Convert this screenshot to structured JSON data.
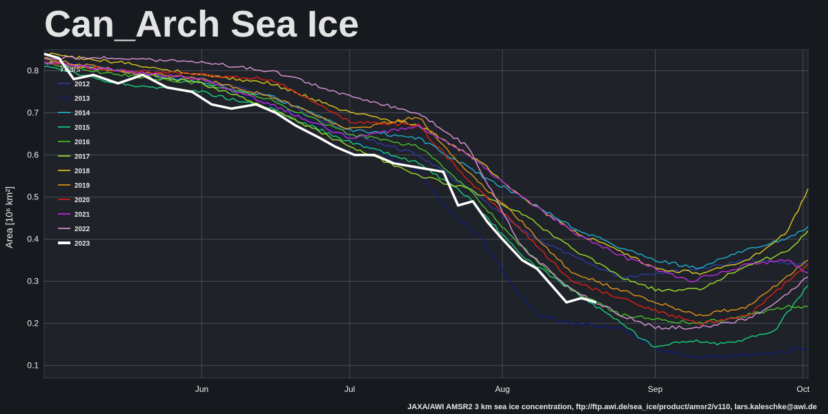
{
  "chart_data": {
    "type": "line",
    "title": "Can_Arch Sea Ice",
    "ylabel": "Area [10⁶ km²]",
    "xlabel": "",
    "xlim": [
      "2023-04-30",
      "2023-10-02"
    ],
    "ylim": [
      0.07,
      0.85
    ],
    "x_ticks": [
      {
        "label": "Jun",
        "date": "2023-06-01"
      },
      {
        "label": "Jul",
        "date": "2023-07-01"
      },
      {
        "label": "Aug",
        "date": "2023-08-01"
      },
      {
        "label": "Sep",
        "date": "2023-09-01"
      },
      {
        "label": "Oct",
        "date": "2023-10-01"
      }
    ],
    "y_ticks": [
      "0.1",
      "0.2",
      "0.3",
      "0.4",
      "0.5",
      "0.6",
      "0.7",
      "0.8"
    ],
    "grid": true,
    "legend": {
      "title": "Years",
      "placement": "upper-left"
    },
    "series": [
      {
        "name": "2012",
        "color": "#2a3a9c",
        "points": [
          [
            "2023-04-30",
            0.82
          ],
          [
            "2023-05-15",
            0.8
          ],
          [
            "2023-06-01",
            0.78
          ],
          [
            "2023-06-15",
            0.74
          ],
          [
            "2023-07-01",
            0.65
          ],
          [
            "2023-07-15",
            0.6
          ],
          [
            "2023-07-25",
            0.52
          ],
          [
            "2023-08-05",
            0.42
          ],
          [
            "2023-08-15",
            0.36
          ],
          [
            "2023-08-25",
            0.31
          ],
          [
            "2023-09-01",
            0.32
          ],
          [
            "2023-09-10",
            0.33
          ],
          [
            "2023-09-20",
            0.35
          ],
          [
            "2023-10-02",
            0.34
          ]
        ]
      },
      {
        "name": "2013",
        "color": "#0d1a7a",
        "points": [
          [
            "2023-04-30",
            0.83
          ],
          [
            "2023-05-15",
            0.8
          ],
          [
            "2023-06-01",
            0.77
          ],
          [
            "2023-06-15",
            0.72
          ],
          [
            "2023-07-01",
            0.64
          ],
          [
            "2023-07-15",
            0.56
          ],
          [
            "2023-07-20",
            0.48
          ],
          [
            "2023-07-28",
            0.4
          ],
          [
            "2023-08-03",
            0.29
          ],
          [
            "2023-08-08",
            0.22
          ],
          [
            "2023-08-15",
            0.2
          ],
          [
            "2023-08-25",
            0.19
          ],
          [
            "2023-09-01",
            0.14
          ],
          [
            "2023-09-08",
            0.12
          ],
          [
            "2023-09-15",
            0.12
          ],
          [
            "2023-09-25",
            0.13
          ],
          [
            "2023-10-02",
            0.14
          ]
        ]
      },
      {
        "name": "2014",
        "color": "#1fa8c8",
        "points": [
          [
            "2023-04-30",
            0.82
          ],
          [
            "2023-05-15",
            0.8
          ],
          [
            "2023-06-01",
            0.77
          ],
          [
            "2023-06-15",
            0.74
          ],
          [
            "2023-07-01",
            0.66
          ],
          [
            "2023-07-15",
            0.64
          ],
          [
            "2023-07-28",
            0.55
          ],
          [
            "2023-08-05",
            0.5
          ],
          [
            "2023-08-15",
            0.43
          ],
          [
            "2023-08-25",
            0.38
          ],
          [
            "2023-09-01",
            0.35
          ],
          [
            "2023-09-10",
            0.33
          ],
          [
            "2023-09-20",
            0.38
          ],
          [
            "2023-09-28",
            0.4
          ],
          [
            "2023-10-02",
            0.43
          ]
        ]
      },
      {
        "name": "2015",
        "color": "#18c87a",
        "points": [
          [
            "2023-04-30",
            0.81
          ],
          [
            "2023-05-15",
            0.77
          ],
          [
            "2023-06-01",
            0.75
          ],
          [
            "2023-06-15",
            0.71
          ],
          [
            "2023-07-01",
            0.63
          ],
          [
            "2023-07-15",
            0.58
          ],
          [
            "2023-07-25",
            0.5
          ],
          [
            "2023-08-05",
            0.36
          ],
          [
            "2023-08-15",
            0.28
          ],
          [
            "2023-08-25",
            0.2
          ],
          [
            "2023-09-01",
            0.14
          ],
          [
            "2023-09-08",
            0.16
          ],
          [
            "2023-09-15",
            0.15
          ],
          [
            "2023-09-25",
            0.18
          ],
          [
            "2023-10-02",
            0.29
          ]
        ]
      },
      {
        "name": "2016",
        "color": "#46b82c",
        "points": [
          [
            "2023-04-30",
            0.82
          ],
          [
            "2023-05-15",
            0.79
          ],
          [
            "2023-06-01",
            0.77
          ],
          [
            "2023-06-15",
            0.73
          ],
          [
            "2023-07-01",
            0.65
          ],
          [
            "2023-07-15",
            0.62
          ],
          [
            "2023-07-25",
            0.52
          ],
          [
            "2023-08-05",
            0.38
          ],
          [
            "2023-08-15",
            0.28
          ],
          [
            "2023-08-25",
            0.22
          ],
          [
            "2023-09-01",
            0.21
          ],
          [
            "2023-09-10",
            0.2
          ],
          [
            "2023-09-20",
            0.22
          ],
          [
            "2023-09-28",
            0.24
          ],
          [
            "2023-10-02",
            0.24
          ]
        ]
      },
      {
        "name": "2017",
        "color": "#98d42a",
        "points": [
          [
            "2023-04-30",
            0.82
          ],
          [
            "2023-05-15",
            0.8
          ],
          [
            "2023-06-01",
            0.77
          ],
          [
            "2023-06-15",
            0.71
          ],
          [
            "2023-07-01",
            0.62
          ],
          [
            "2023-07-15",
            0.55
          ],
          [
            "2023-07-25",
            0.52
          ],
          [
            "2023-08-05",
            0.46
          ],
          [
            "2023-08-15",
            0.38
          ],
          [
            "2023-08-25",
            0.31
          ],
          [
            "2023-09-01",
            0.28
          ],
          [
            "2023-09-10",
            0.28
          ],
          [
            "2023-09-20",
            0.34
          ],
          [
            "2023-09-28",
            0.37
          ],
          [
            "2023-10-02",
            0.42
          ]
        ]
      },
      {
        "name": "2018",
        "color": "#d4c020",
        "points": [
          [
            "2023-04-30",
            0.84
          ],
          [
            "2023-05-15",
            0.82
          ],
          [
            "2023-06-01",
            0.79
          ],
          [
            "2023-06-15",
            0.77
          ],
          [
            "2023-07-01",
            0.7
          ],
          [
            "2023-07-15",
            0.67
          ],
          [
            "2023-07-28",
            0.58
          ],
          [
            "2023-08-05",
            0.5
          ],
          [
            "2023-08-15",
            0.42
          ],
          [
            "2023-08-25",
            0.37
          ],
          [
            "2023-09-01",
            0.33
          ],
          [
            "2023-09-10",
            0.32
          ],
          [
            "2023-09-20",
            0.35
          ],
          [
            "2023-09-28",
            0.42
          ],
          [
            "2023-10-02",
            0.52
          ]
        ]
      },
      {
        "name": "2019",
        "color": "#d8901a",
        "points": [
          [
            "2023-04-30",
            0.83
          ],
          [
            "2023-05-15",
            0.8
          ],
          [
            "2023-06-01",
            0.78
          ],
          [
            "2023-06-15",
            0.74
          ],
          [
            "2023-07-01",
            0.66
          ],
          [
            "2023-07-15",
            0.69
          ],
          [
            "2023-07-25",
            0.56
          ],
          [
            "2023-08-05",
            0.44
          ],
          [
            "2023-08-15",
            0.32
          ],
          [
            "2023-08-25",
            0.28
          ],
          [
            "2023-09-01",
            0.25
          ],
          [
            "2023-09-10",
            0.22
          ],
          [
            "2023-09-20",
            0.24
          ],
          [
            "2023-10-02",
            0.35
          ]
        ]
      },
      {
        "name": "2020",
        "color": "#d42018",
        "points": [
          [
            "2023-04-30",
            0.82
          ],
          [
            "2023-05-15",
            0.8
          ],
          [
            "2023-06-01",
            0.79
          ],
          [
            "2023-06-15",
            0.78
          ],
          [
            "2023-07-01",
            0.68
          ],
          [
            "2023-07-15",
            0.67
          ],
          [
            "2023-07-25",
            0.54
          ],
          [
            "2023-08-05",
            0.42
          ],
          [
            "2023-08-15",
            0.3
          ],
          [
            "2023-08-25",
            0.26
          ],
          [
            "2023-09-01",
            0.23
          ],
          [
            "2023-09-10",
            0.2
          ],
          [
            "2023-09-20",
            0.22
          ],
          [
            "2023-09-28",
            0.3
          ],
          [
            "2023-10-02",
            0.34
          ]
        ]
      },
      {
        "name": "2021",
        "color": "#b82cd8",
        "points": [
          [
            "2023-04-30",
            0.82
          ],
          [
            "2023-05-15",
            0.8
          ],
          [
            "2023-06-01",
            0.78
          ],
          [
            "2023-06-15",
            0.72
          ],
          [
            "2023-07-01",
            0.64
          ],
          [
            "2023-07-15",
            0.67
          ],
          [
            "2023-07-25",
            0.6
          ],
          [
            "2023-08-05",
            0.5
          ],
          [
            "2023-08-15",
            0.42
          ],
          [
            "2023-08-25",
            0.36
          ],
          [
            "2023-09-01",
            0.33
          ],
          [
            "2023-09-08",
            0.3
          ],
          [
            "2023-09-20",
            0.34
          ],
          [
            "2023-09-28",
            0.35
          ],
          [
            "2023-10-02",
            0.32
          ]
        ]
      },
      {
        "name": "2022",
        "color": "#d490d0",
        "points": [
          [
            "2023-04-30",
            0.83
          ],
          [
            "2023-05-15",
            0.83
          ],
          [
            "2023-06-01",
            0.82
          ],
          [
            "2023-06-15",
            0.8
          ],
          [
            "2023-07-01",
            0.74
          ],
          [
            "2023-07-15",
            0.7
          ],
          [
            "2023-07-25",
            0.62
          ],
          [
            "2023-08-05",
            0.38
          ],
          [
            "2023-08-15",
            0.28
          ],
          [
            "2023-08-25",
            0.22
          ],
          [
            "2023-09-01",
            0.19
          ],
          [
            "2023-09-10",
            0.19
          ],
          [
            "2023-09-20",
            0.21
          ],
          [
            "2023-09-28",
            0.27
          ],
          [
            "2023-10-02",
            0.31
          ]
        ]
      },
      {
        "name": "2023",
        "color": "#ffffff",
        "points": [
          [
            "2023-04-30",
            0.84
          ],
          [
            "2023-05-03",
            0.83
          ],
          [
            "2023-05-06",
            0.78
          ],
          [
            "2023-05-10",
            0.79
          ],
          [
            "2023-05-15",
            0.77
          ],
          [
            "2023-05-20",
            0.79
          ],
          [
            "2023-05-25",
            0.76
          ],
          [
            "2023-05-30",
            0.75
          ],
          [
            "2023-06-03",
            0.72
          ],
          [
            "2023-06-07",
            0.71
          ],
          [
            "2023-06-12",
            0.72
          ],
          [
            "2023-06-16",
            0.7
          ],
          [
            "2023-06-20",
            0.67
          ],
          [
            "2023-06-25",
            0.64
          ],
          [
            "2023-06-28",
            0.62
          ],
          [
            "2023-07-02",
            0.6
          ],
          [
            "2023-07-06",
            0.6
          ],
          [
            "2023-07-10",
            0.58
          ],
          [
            "2023-07-15",
            0.57
          ],
          [
            "2023-07-20",
            0.56
          ],
          [
            "2023-07-23",
            0.48
          ],
          [
            "2023-07-26",
            0.49
          ],
          [
            "2023-07-29",
            0.44
          ],
          [
            "2023-08-01",
            0.4
          ],
          [
            "2023-08-05",
            0.35
          ],
          [
            "2023-08-08",
            0.33
          ],
          [
            "2023-08-11",
            0.29
          ],
          [
            "2023-08-14",
            0.25
          ],
          [
            "2023-08-17",
            0.26
          ],
          [
            "2023-08-20",
            0.25
          ]
        ]
      }
    ]
  },
  "credit": "JAXA/AWI AMSR2 3 km sea ice concentration, ftp://ftp.awi.de/sea_ice/product/amsr2/v110, lars.kaleschke@awi.de"
}
